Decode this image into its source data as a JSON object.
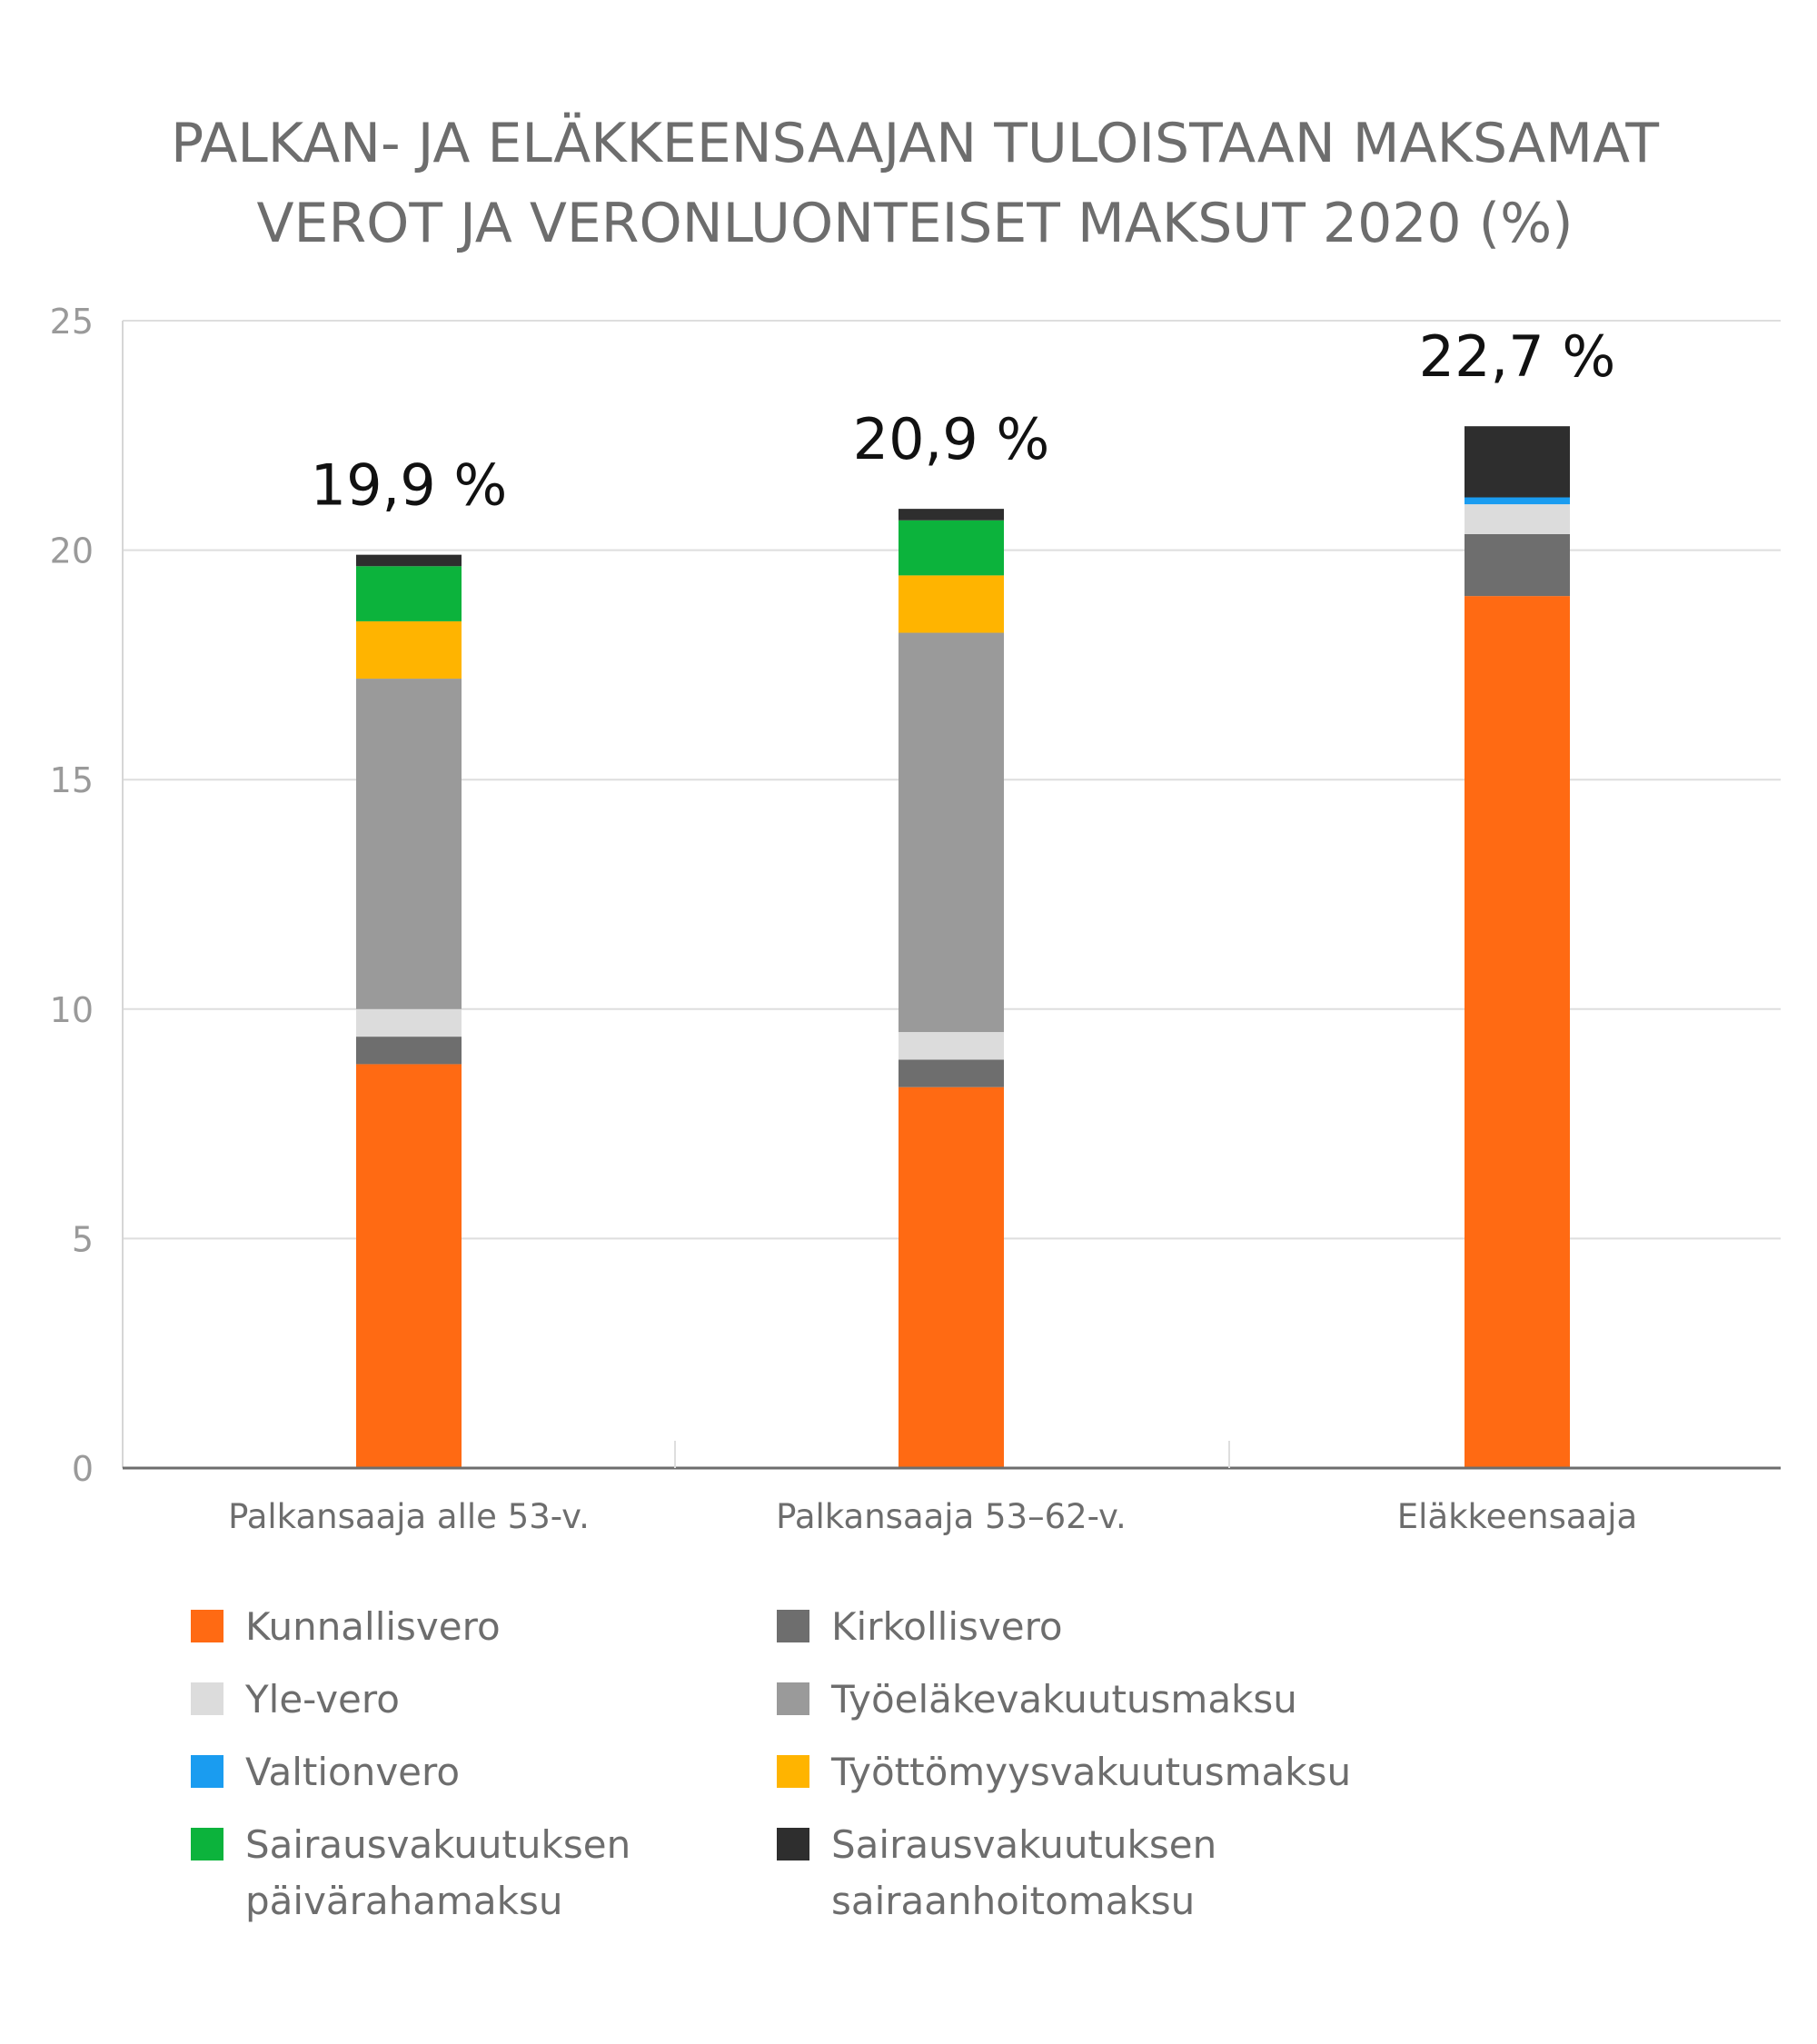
{
  "chart_data": {
    "type": "bar",
    "stacked": true,
    "title": "PALKAN- JA ELÄKKEENSAAJAN TULOISTAAN MAKSAMAT VEROT JA VERONLUONTEISET MAKSUT 2020 (%)",
    "title_lines": [
      "PALKAN- JA ELÄKKEENSAAJAN TULOISTAAN MAKSAMAT",
      "VEROT JA VERONLUONTEISET MAKSUT 2020 (%)"
    ],
    "categories": [
      "Palkansaaja alle 53-v.",
      "Palkansaaja 53–62-v.",
      "Eläkkeensaaja"
    ],
    "totals": [
      19.9,
      20.9,
      22.7
    ],
    "total_labels": [
      "19,9 %",
      "20,9 %",
      "22,7 %"
    ],
    "ylim": [
      0,
      25
    ],
    "yticks": [
      0,
      5,
      10,
      15,
      20,
      25
    ],
    "grid": true,
    "legend_position": "bottom",
    "series": [
      {
        "key": "kunnallisvero",
        "name": "Kunnallisvero",
        "color": "#ff6a13",
        "values": [
          8.8,
          8.3,
          19.0
        ]
      },
      {
        "key": "kirkollisvero",
        "name": "Kirkollisvero",
        "color": "#6e6e6e",
        "values": [
          0.6,
          0.6,
          1.35
        ]
      },
      {
        "key": "yle",
        "name": "Yle-vero",
        "color": "#dcdcdc",
        "values": [
          0.6,
          0.6,
          0.65
        ]
      },
      {
        "key": "valtionvero",
        "name": "Valtionvero",
        "color": "#1a9cf0",
        "values": [
          0.0,
          0.0,
          0.15
        ]
      },
      {
        "key": "tyoelake",
        "name": "Työeläkevakuutusmaksu",
        "color": "#9a9a9a",
        "values": [
          7.2,
          8.7,
          0.0
        ]
      },
      {
        "key": "tyottomyys",
        "name": "Työttömyysvakuutusmaksu",
        "color": "#ffb400",
        "values": [
          1.25,
          1.25,
          0.0
        ]
      },
      {
        "key": "paivaraha",
        "name": "Sairausvakuutuksen päivärahamaksu",
        "color": "#0cb33c",
        "values": [
          1.2,
          1.2,
          0.0
        ]
      },
      {
        "key": "sairaanhoito",
        "name": "Sairausvakuutuksen sairaanhoitomaksu",
        "color": "#2e2e2e",
        "values": [
          0.25,
          0.25,
          1.55
        ]
      }
    ]
  },
  "legend": [
    {
      "color": "#ff6a13",
      "lines": [
        "Kunnallisvero"
      ]
    },
    {
      "color": "#6e6e6e",
      "lines": [
        "Kirkollisvero"
      ]
    },
    {
      "color": "#dcdcdc",
      "lines": [
        "Yle-vero"
      ]
    },
    {
      "color": "#9a9a9a",
      "lines": [
        "Työeläkevakuutusmaksu"
      ]
    },
    {
      "color": "#1a9cf0",
      "lines": [
        "Valtionvero"
      ]
    },
    {
      "color": "#ffb400",
      "lines": [
        "Työttömyysvakuutusmaksu"
      ]
    },
    {
      "color": "#0cb33c",
      "lines": [
        "Sairausvakuutuksen",
        "päivärahamaksu"
      ]
    },
    {
      "color": "#2e2e2e",
      "lines": [
        "Sairausvakuutuksen",
        "sairaanhoitomaksu"
      ]
    }
  ]
}
